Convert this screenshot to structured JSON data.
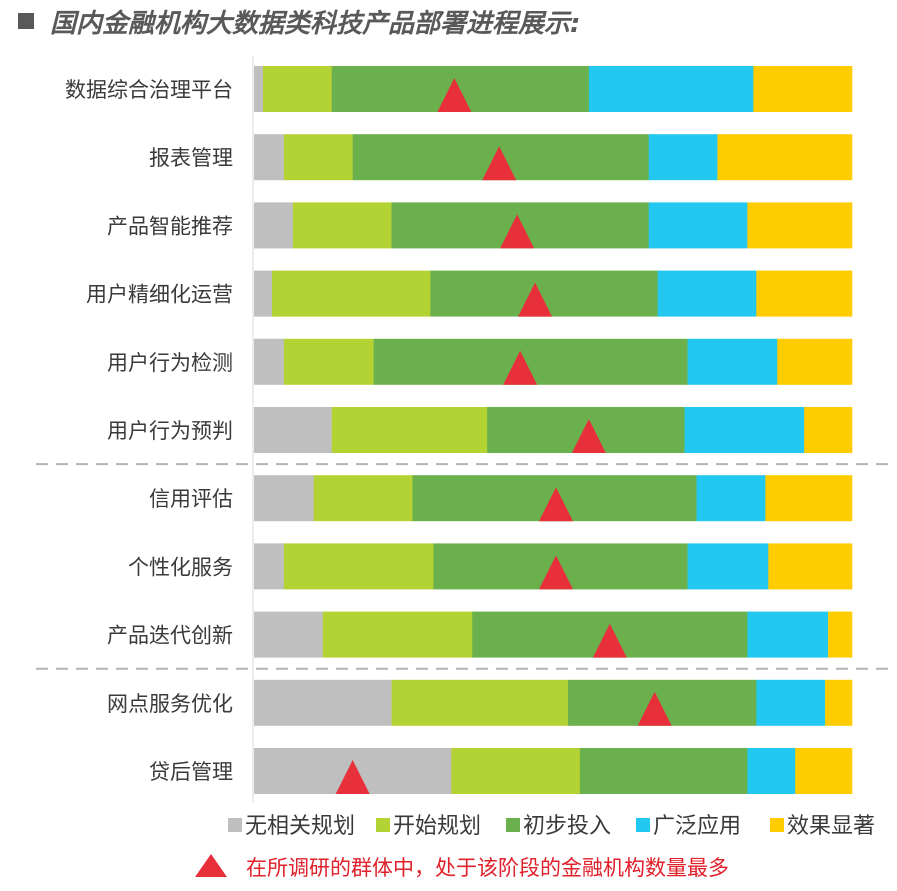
{
  "title": "国内金融机构大数据类科技产品部署进程展示:",
  "chart_data": {
    "type": "bar",
    "orientation": "horizontal",
    "stacked": "100%",
    "xlim": [
      0,
      100
    ],
    "categories": [
      "数据综合治理平台",
      "报表管理",
      "产品智能推荐",
      "用户精细化运营",
      "用户行为检测",
      "用户行为预判",
      "信用评估",
      "个性化服务",
      "产品迭代创新",
      "网点服务优化",
      "贷后管理"
    ],
    "series": [
      {
        "name": "无相关规划",
        "color": "#bfbfbf",
        "values": [
          1.5,
          5,
          6.5,
          3,
          5,
          13,
          10,
          5,
          11.5,
          23,
          33
        ]
      },
      {
        "name": "开始规划",
        "color": "#b3d234",
        "values": [
          11.5,
          11.5,
          16.5,
          26.5,
          15,
          26,
          16.5,
          25,
          25,
          29.5,
          21.5
        ]
      },
      {
        "name": "初步投入",
        "color": "#6ab04c",
        "values": [
          43,
          49.5,
          43,
          38,
          52.5,
          33,
          47.5,
          42.5,
          46,
          31.5,
          28
        ]
      },
      {
        "name": "广泛应用",
        "color": "#22c8f0",
        "values": [
          27.5,
          11.5,
          16.5,
          16.5,
          15,
          20,
          11.5,
          13.5,
          13.5,
          11.5,
          8
        ]
      },
      {
        "name": "效果显著",
        "color": "#ffcc00",
        "values": [
          16.5,
          22.5,
          17.5,
          16,
          12.5,
          8,
          14.5,
          14,
          4,
          4.5,
          9.5
        ]
      }
    ],
    "most_common_stage_marker": {
      "color": "#e8303a",
      "x_values": [
        33.5,
        41,
        44,
        47,
        44.5,
        56,
        50.5,
        50.5,
        59.5,
        67,
        16.5
      ]
    },
    "group_separators_after": [
      "用户行为预判",
      "产品迭代创新"
    ],
    "legend_position": "bottom",
    "note": "在所调研的群体中，处于该阶段的金融机构数量最多"
  }
}
